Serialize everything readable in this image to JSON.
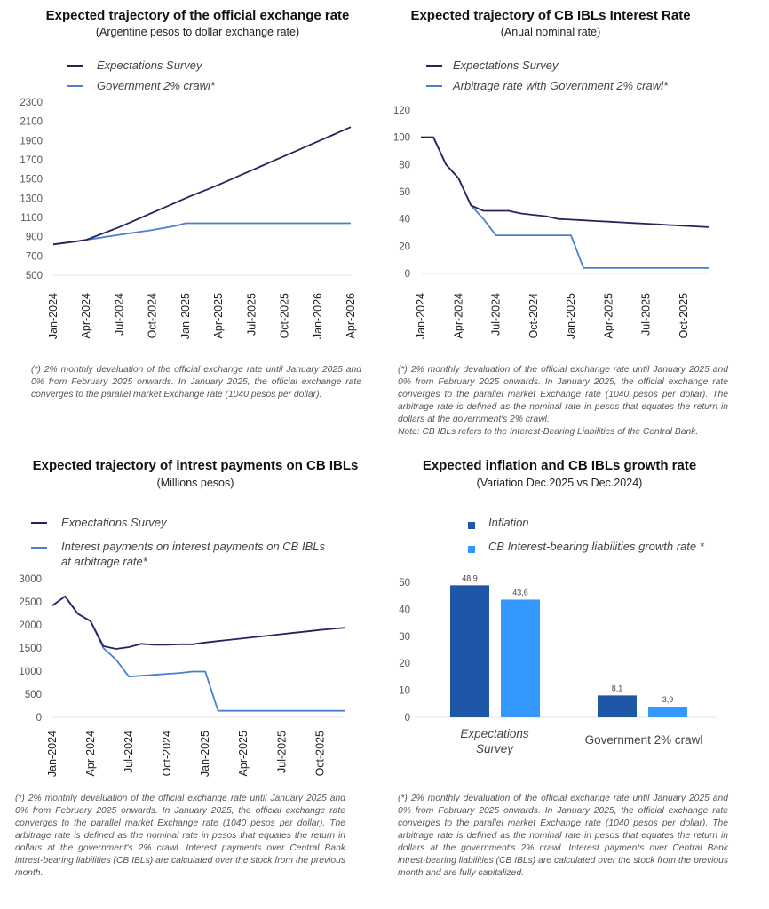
{
  "colors": {
    "dark_line": "#26245e",
    "light_line": "#4a7fd0",
    "bar_inflation": "#1f57a8",
    "bar_ibl": "#3399ff"
  },
  "chart_data": [
    {
      "type": "line",
      "title": "Expected trajectory of the official exchange rate",
      "subtitle": "(Argentine pesos to dollar exchange rate)",
      "xlabel": "",
      "ylabel": "",
      "ylim": [
        500,
        2300
      ],
      "yticks": [
        500,
        700,
        900,
        1100,
        1300,
        1500,
        1700,
        1900,
        2100,
        2300
      ],
      "x_tick_labels": [
        "Jan-2024",
        "Apr-2024",
        "Jul-2024",
        "Oct-2024",
        "Jan-2025",
        "Apr-2025",
        "Jul-2025",
        "Oct-2025",
        "Jan-2026",
        "Apr-2026"
      ],
      "x_tick_step": 3,
      "legend_position": "top-left",
      "series": [
        {
          "name": "Expectations Survey",
          "color": "#26245e",
          "values": [
            820,
            835,
            850,
            868,
            912,
            956,
            1000,
            1050,
            1100,
            1150,
            1200,
            1250,
            1300,
            1347,
            1393,
            1440,
            1490,
            1540,
            1590,
            1640,
            1690,
            1740,
            1790,
            1840,
            1890,
            1940,
            1990,
            2040
          ]
        },
        {
          "name": "Government 2% crawl*",
          "color": "#4a7fd0",
          "values": [
            820,
            835,
            850,
            868,
            885,
            902,
            920,
            937,
            953,
            970,
            990,
            1010,
            1040,
            1040,
            1040,
            1040,
            1040,
            1040,
            1040,
            1040,
            1040,
            1040,
            1040,
            1040,
            1040,
            1040,
            1040,
            1040
          ]
        }
      ],
      "footnote": "(*) 2% monthly devaluation of the official exchange rate until January 2025 and 0% from February 2025 onwards. In January 2025, the official exchange rate converges to the parallel market Exchange rate (1040 pesos per dollar)."
    },
    {
      "type": "line",
      "title": "Expected trajectory of CB IBLs Interest Rate",
      "subtitle": "(Anual nominal rate)",
      "xlabel": "",
      "ylabel": "",
      "ylim": [
        0,
        120
      ],
      "yticks": [
        0,
        20,
        40,
        60,
        80,
        100,
        120
      ],
      "x_tick_labels": [
        "Jan-2024",
        "Apr-2024",
        "Jul-2024",
        "Oct-2024",
        "Jan-2025",
        "Apr-2025",
        "Jul-2025",
        "Oct-2025"
      ],
      "x_tick_step": 3,
      "legend_position": "top-left",
      "series": [
        {
          "name": "Expectations Survey",
          "color": "#26245e",
          "values": [
            100,
            100,
            80,
            70,
            50,
            46,
            46,
            46,
            44,
            43,
            42,
            40,
            39.5,
            39,
            38.5,
            38,
            37.5,
            37,
            36.5,
            36,
            35.5,
            35,
            34.5,
            34
          ]
        },
        {
          "name": "Arbitrage rate with Government 2% crawl*",
          "color": "#4a7fd0",
          "values": [
            100,
            100,
            80,
            70,
            50,
            40,
            28,
            28,
            28,
            28,
            28,
            28,
            28,
            4,
            4,
            4,
            4,
            4,
            4,
            4,
            4,
            4,
            4,
            4
          ]
        }
      ],
      "footnote": "(*) 2% monthly devaluation of the official exchange rate until January 2025 and 0% from February 2025 onwards. In January 2025, the official exchange rate converges to the parallel market Exchange rate (1040 pesos per dollar). The arbitrage rate is defined as the nominal rate in pesos that equates the return in dollars at the government's 2% crawl.",
      "note": "Note: CB IBLs refers to the Interest-Bearing Liabilities of the Central Bank."
    },
    {
      "type": "line",
      "title": "Expected trajectory of intrest payments on CB IBLs",
      "subtitle": "(Millions pesos)",
      "xlabel": "",
      "ylabel": "",
      "ylim": [
        0,
        3000
      ],
      "yticks": [
        0,
        500,
        1000,
        1500,
        2000,
        2500,
        3000
      ],
      "x_tick_labels": [
        "Jan-2024",
        "Apr-2024",
        "Jul-2024",
        "Oct-2024",
        "Jan-2025",
        "Apr-2025",
        "Jul-2025",
        "Oct-2025"
      ],
      "x_tick_step": 3,
      "legend_position": "top-left",
      "series": [
        {
          "name": "Expectations Survey",
          "color": "#26245e",
          "values": [
            2420,
            2620,
            2240,
            2080,
            1540,
            1480,
            1520,
            1590,
            1570,
            1570,
            1580,
            1580,
            1620,
            1650,
            1680,
            1710,
            1740,
            1770,
            1800,
            1830,
            1860,
            1890,
            1915,
            1940
          ]
        },
        {
          "name": "Interest payments on interest payments on CB IBLs at arbitrage rate*",
          "color": "#4a7fd0",
          "values": [
            2420,
            2620,
            2240,
            2080,
            1500,
            1250,
            880,
            900,
            920,
            940,
            960,
            990,
            990,
            140,
            140,
            140,
            140,
            140,
            140,
            140,
            140,
            140,
            140,
            140
          ]
        }
      ],
      "footnote": "(*) 2% monthly devaluation of the official exchange rate until January 2025 and 0% from February 2025 onwards. In January 2025, the official exchange rate converges to the parallel market Exchange rate (1040 pesos per dollar). The arbitrage rate is defined as the nominal rate in pesos that equates the return in dollars at the government's 2% crawl. Interest payments over Central Bank intrest-bearing liabilities (CB IBLs) are calculated over the stock from the previous month."
    },
    {
      "type": "bar",
      "title": "Expected inflation and CB IBLs growth rate",
      "subtitle": "(Variation Dec.2025 vs Dec.2024)",
      "xlabel": "",
      "ylabel": "",
      "ylim": [
        0,
        50
      ],
      "yticks": [
        0,
        10,
        20,
        30,
        40,
        50
      ],
      "categories": [
        "Expectations Survey",
        "Government 2% crawl"
      ],
      "legend_position": "top-left",
      "series": [
        {
          "name": "Inflation",
          "color": "#1f57a8",
          "values": [
            48.9,
            8.1
          ],
          "labels": [
            "48,9",
            "8,1"
          ]
        },
        {
          "name": "CB Interest-bearing liabilities growth rate *",
          "color": "#3399ff",
          "values": [
            43.6,
            3.9
          ],
          "labels": [
            "43,6",
            "3,9"
          ]
        }
      ],
      "footnote": "(*) 2% monthly devaluation of the official exchange rate until January 2025 and 0% from February 2025 onwards. In January 2025, the official exchange rate converges to the parallel market Exchange rate (1040 pesos per dollar). The arbitrage rate is defined as the nominal rate in pesos that equates the return in dollars at the government's 2% crawl. Interest payments over Central Bank intrest-bearing liabilities (CB IBLs) are calculated over the stock from the previous month and are fully capitalized."
    }
  ]
}
